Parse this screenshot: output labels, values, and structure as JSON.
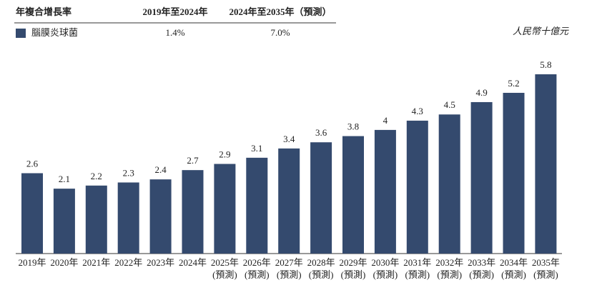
{
  "cagr_table": {
    "header": [
      "年複合增長率",
      "2019年至2024年",
      "2024年至2035年（預測）"
    ],
    "rows": [
      [
        "腦膜炎球菌",
        "1.4%",
        "7.0%"
      ]
    ]
  },
  "chart_data": {
    "type": "bar",
    "unit": "人民幣十億元",
    "color": "#344a6e",
    "categories": [
      [
        "2019年"
      ],
      [
        "2020年"
      ],
      [
        "2021年"
      ],
      [
        "2022年"
      ],
      [
        "2023年"
      ],
      [
        "2024年"
      ],
      [
        "2025年",
        "(預測)"
      ],
      [
        "2026年",
        "(預測)"
      ],
      [
        "2027年",
        "(預測)"
      ],
      [
        "2028年",
        "(預測)"
      ],
      [
        "2029年",
        "(預測)"
      ],
      [
        "2030年",
        "(預測)"
      ],
      [
        "2031年",
        "(預測)"
      ],
      [
        "2032年",
        "(預測)"
      ],
      [
        "2033年",
        "(預測)"
      ],
      [
        "2034年",
        "(預測)"
      ],
      [
        "2035年",
        "(預測)"
      ]
    ],
    "values": [
      2.6,
      2.1,
      2.2,
      2.3,
      2.4,
      2.7,
      2.9,
      3.1,
      3.4,
      3.6,
      3.8,
      4.0,
      4.3,
      4.5,
      4.9,
      5.2,
      5.8
    ]
  }
}
